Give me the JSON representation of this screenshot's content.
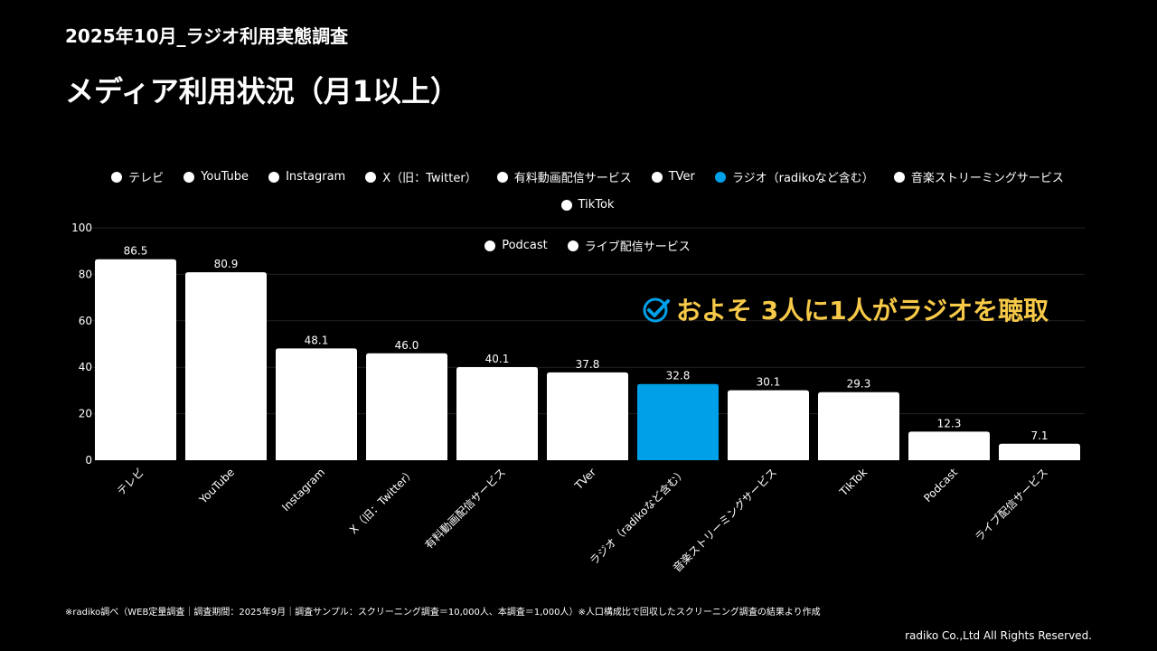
{
  "header": {
    "subtitle": "2025年10月_ラジオ利用実態調査",
    "title": "メディア利用状況（月1以上）"
  },
  "callout": "およそ 3人に1人がラジオを聴取",
  "footnote": "※radiko調べ（WEB定量調査｜調査期間：2025年9月｜調査サンプル：スクリーニング調査＝10,000人、本調査＝1,000人）※人口構成比で回収したスクリーニング調査の結果より作成",
  "copyright": "radiko Co.,Ltd All Rights Reserved.",
  "colors": {
    "default": "#ffffff",
    "highlight": "#00a0e9",
    "callout": "#f7c948"
  },
  "chart_data": {
    "type": "bar",
    "title": "メディア利用状況（月1以上）",
    "xlabel": "",
    "ylabel": "",
    "ylim": [
      0,
      100
    ],
    "yticks": [
      0,
      20,
      40,
      60,
      80,
      100
    ],
    "grid": true,
    "legend_position": "top",
    "highlight_index": 6,
    "categories": [
      "テレビ",
      "YouTube",
      "Instagram",
      "X（旧：Twitter）",
      "有料動画配信サービス",
      "TVer",
      "ラジオ（radikoなど含む）",
      "音楽ストリーミングサービス",
      "TikTok",
      "Podcast",
      "ライブ配信サービス"
    ],
    "values": [
      86.5,
      80.9,
      48.1,
      46.0,
      40.1,
      37.8,
      32.8,
      30.1,
      29.3,
      12.3,
      7.1
    ],
    "value_labels": [
      "86.5",
      "80.9",
      "48.1",
      "46.0",
      "40.1",
      "37.8",
      "32.8",
      "30.1",
      "29.3",
      "12.3",
      "7.1"
    ]
  }
}
